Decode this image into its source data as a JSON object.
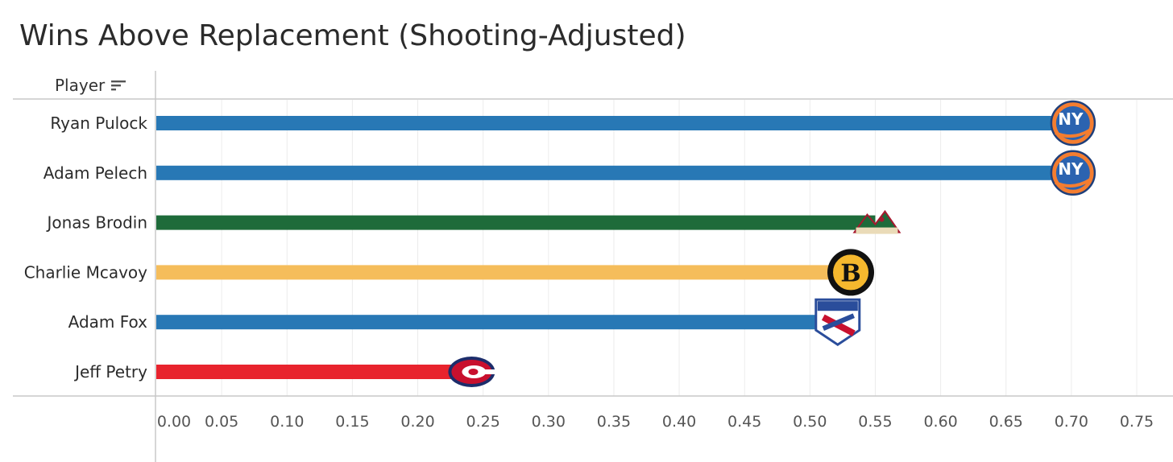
{
  "title": "Wins Above Replacement (Shooting-Adjusted)",
  "row_header": "Player",
  "icons": {
    "sort": "sort-descending-icon"
  },
  "chart_data": {
    "type": "bar",
    "orientation": "horizontal",
    "title": "Wins Above Replacement (Shooting-Adjusted)",
    "ylabel": "Player",
    "xlabel": "",
    "categories": [
      "Ryan Pulock",
      "Adam Pelech",
      "Jonas Brodin",
      "Charlie Mcavoy",
      "Adam Fox",
      "Jeff Petry"
    ],
    "values": [
      0.7,
      0.7,
      0.55,
      0.53,
      0.52,
      0.24
    ],
    "colors": [
      "#2878b5",
      "#2878b5",
      "#1e6b3a",
      "#f5bd5b",
      "#2878b5",
      "#e8232d"
    ],
    "teams": [
      "new-york-islanders-logo",
      "new-york-islanders-logo",
      "minnesota-wild-logo",
      "boston-bruins-logo",
      "new-york-rangers-logo",
      "montreal-canadiens-logo"
    ],
    "xlim": [
      0,
      0.75
    ],
    "xticks": [
      "0.00",
      "0.05",
      "0.10",
      "0.15",
      "0.20",
      "0.25",
      "0.30",
      "0.35",
      "0.40",
      "0.45",
      "0.50",
      "0.55",
      "0.60",
      "0.65",
      "0.70",
      "0.75"
    ],
    "grid": true,
    "legend": "none"
  }
}
